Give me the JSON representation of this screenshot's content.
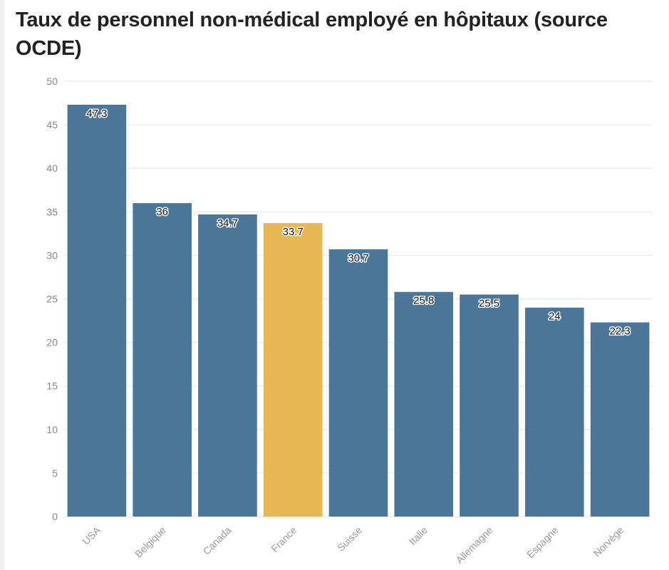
{
  "chart_data": {
    "type": "bar",
    "title": "Taux de personnel non-médical employé en hôpitaux (source OCDE)",
    "xlabel": "",
    "ylabel": "",
    "ylim": [
      0,
      50
    ],
    "yticks": [
      0,
      5,
      10,
      15,
      20,
      25,
      30,
      35,
      40,
      45,
      50
    ],
    "grid": true,
    "categories": [
      "USA",
      "Belgique",
      "Canada",
      "France",
      "Suisse",
      "Italie",
      "Allemagne",
      "Espagne",
      "Norvège"
    ],
    "values": [
      47.3,
      36,
      34.7,
      33.7,
      30.7,
      25.8,
      25.5,
      24,
      22.3
    ],
    "data_labels": [
      "47.3",
      "36",
      "34.7",
      "33.7",
      "30.7",
      "25.8",
      "25.5",
      "24",
      "22.3"
    ],
    "colors": {
      "default": "#4a7699",
      "highlight": "#e6b752",
      "highlight_category": "France"
    }
  }
}
